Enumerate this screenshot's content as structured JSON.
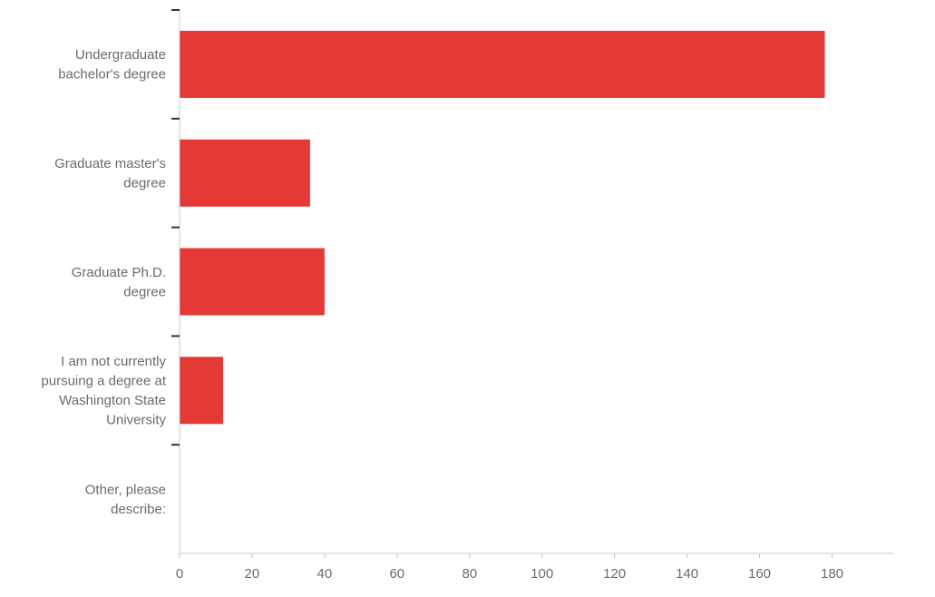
{
  "chart_data": {
    "type": "bar",
    "orientation": "horizontal",
    "categories": [
      "Undergraduate bachelor's degree",
      "Graduate master's degree",
      "Graduate Ph.D. degree",
      "I am not currently pursuing a degree at Washington State University",
      "Other, please describe:"
    ],
    "category_lines": [
      [
        "Undergraduate",
        "bachelor's degree"
      ],
      [
        "Graduate master's",
        "degree"
      ],
      [
        "Graduate Ph.D.",
        "degree"
      ],
      [
        "I am not currently",
        "pursuing a degree at",
        "Washington State",
        "University"
      ],
      [
        "Other, please",
        "describe:"
      ]
    ],
    "values": [
      178,
      36,
      40,
      12,
      0
    ],
    "title": "",
    "xlabel": "",
    "ylabel": "",
    "xlim": [
      0,
      196
    ],
    "xticks": [
      0,
      20,
      40,
      60,
      80,
      100,
      120,
      140,
      160,
      180
    ],
    "grid": false,
    "legend": "none",
    "colors": {
      "bar": "#e53935",
      "axis": "#c8c8c8",
      "tick_mark": "#333333",
      "label": "#6b6b6b"
    }
  }
}
